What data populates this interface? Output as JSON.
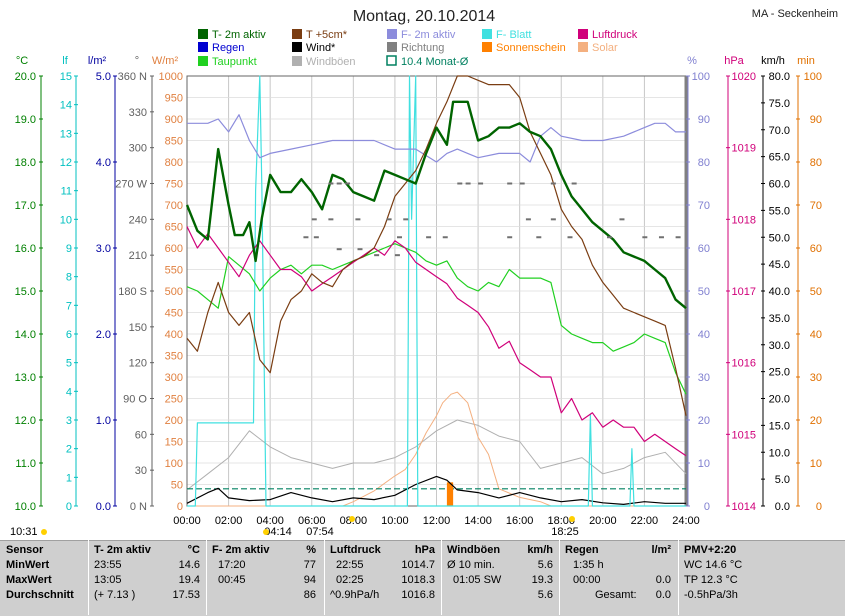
{
  "title": "Montag, 20.10.2014",
  "station": "MA - Seckenheim",
  "legend": [
    {
      "label": "T- 2m aktiv",
      "color": "#006400"
    },
    {
      "label": "T +5cm*",
      "color": "#7a3d12"
    },
    {
      "label": "F- 2m aktiv",
      "color": "#8c8cdc"
    },
    {
      "label": "F- Blatt",
      "color": "#40e0e0"
    },
    {
      "label": "Luftdruck",
      "color": "#d0007a"
    },
    {
      "label": "Regen",
      "color": "#0000d0"
    },
    {
      "label": "Wind*",
      "color": "#000000"
    },
    {
      "label": "Richtung",
      "color": "#808080"
    },
    {
      "label": "Sonnenschein",
      "color": "#ff8000"
    },
    {
      "label": "Solar",
      "color": "#f4b080"
    },
    {
      "label": "Taupunkt",
      "color": "#20d020"
    },
    {
      "label": "Windböen",
      "color": "#b0b0b0"
    },
    {
      "label": "10.4 Monat-Ø",
      "color": "#008060"
    }
  ],
  "axes": {
    "temp": {
      "unit": "°C",
      "ticks": [
        "20.0",
        "19.0",
        "18.0",
        "17.0",
        "16.0",
        "15.0",
        "14.0",
        "13.0",
        "12.0",
        "11.0",
        "10.0"
      ],
      "color": "#008000"
    },
    "leaf": {
      "unit": "lf",
      "ticks": [
        "15",
        "14",
        "13",
        "12",
        "11",
        "10",
        "9",
        "8",
        "7",
        "6",
        "5",
        "4",
        "3",
        "2",
        "1",
        "0"
      ],
      "color": "#00c0c0"
    },
    "rain": {
      "unit": "l/m²",
      "ticks": [
        "5.0",
        "4.0",
        "3.0",
        "2.0",
        "1.0",
        "0.0"
      ],
      "color": "#0000a0"
    },
    "dir": {
      "unit": "°",
      "ticks": [
        "360 N",
        "330",
        "300",
        "270 W",
        "240",
        "210",
        "180 S",
        "150",
        "120",
        "90 O",
        "60",
        "30",
        "0 N"
      ],
      "color": "#606060"
    },
    "solar": {
      "unit": "W/m²",
      "ticks": [
        "1000",
        "950",
        "900",
        "850",
        "800",
        "750",
        "700",
        "650",
        "600",
        "550",
        "500",
        "450",
        "400",
        "350",
        "300",
        "250",
        "200",
        "150",
        "100",
        "50",
        "0"
      ],
      "color": "#e08040"
    },
    "hum": {
      "unit": "%",
      "ticks": [
        "100",
        "90",
        "80",
        "70",
        "60",
        "50",
        "40",
        "30",
        "20",
        "10",
        "0"
      ],
      "color": "#8080d0"
    },
    "press": {
      "unit": "hPa",
      "ticks": [
        "1020",
        "1019",
        "1018",
        "1017",
        "1016",
        "1015",
        "1014"
      ],
      "color": "#d0007a"
    },
    "wind": {
      "unit": "km/h",
      "ticks": [
        "80.0",
        "75.0",
        "70.0",
        "65.0",
        "60.0",
        "55.0",
        "50.0",
        "45.0",
        "40.0",
        "35.0",
        "30.0",
        "25.0",
        "20.0",
        "15.0",
        "10.0",
        "5.0",
        "0.0"
      ],
      "color": "#000000"
    },
    "min": {
      "unit": "min",
      "ticks": [
        "100",
        "90",
        "80",
        "70",
        "60",
        "50",
        "40",
        "30",
        "20",
        "10",
        "0"
      ],
      "color": "#e07000"
    },
    "time": [
      "00:00",
      "02:00",
      "04:00",
      "06:00",
      "08:00",
      "10:00",
      "12:00",
      "14:00",
      "16:00",
      "18:00",
      "20:00",
      "22:00",
      "24:00"
    ]
  },
  "sun_times": {
    "sunrise": "04:14",
    "dawn": "07:54",
    "sunset": "18:25",
    "left": "10:31"
  },
  "chart_data": {
    "type": "line",
    "title": "Montag, 20.10.2014",
    "x_unit": "hours",
    "xlim": [
      0,
      24
    ],
    "series": [
      {
        "name": "T- 2m aktiv",
        "unit": "°C",
        "ylim": [
          10,
          20
        ],
        "x": [
          0,
          0.5,
          1,
          1.5,
          2,
          2.3,
          2.7,
          3,
          3.3,
          3.6,
          4,
          4.5,
          5,
          5.5,
          6,
          6.5,
          7,
          7.5,
          8,
          8.5,
          9,
          9.5,
          10,
          10.5,
          11,
          11.5,
          12,
          12.5,
          12.8,
          13,
          13.5,
          14,
          14.5,
          15,
          15.5,
          16,
          16.5,
          17,
          17.5,
          18,
          18.5,
          19,
          19.5,
          20,
          20.5,
          21,
          21.5,
          22,
          22.5,
          23,
          23.5,
          24
        ],
        "values": [
          17,
          16.4,
          16.2,
          18.3,
          17,
          16.3,
          16.3,
          16.6,
          15.7,
          16.7,
          17.7,
          17.3,
          17.3,
          17.6,
          17.3,
          16.9,
          17.7,
          17.6,
          17.3,
          17.2,
          17.1,
          17.8,
          17.7,
          17.6,
          17.5,
          18.2,
          18.8,
          18.4,
          19.4,
          19.4,
          19.4,
          18.5,
          18.6,
          18.8,
          18.8,
          18.9,
          18.7,
          18.6,
          18.3,
          17.7,
          17.2,
          16.9,
          16.6,
          16.4,
          16.2,
          15.9,
          15.8,
          15.7,
          15.5,
          15.3,
          14.8,
          14.6
        ]
      },
      {
        "name": "T +5cm*",
        "unit": "°C",
        "ylim": [
          10,
          20
        ],
        "x": [
          0,
          0.5,
          1,
          1.5,
          2,
          2.5,
          3,
          3.5,
          4,
          4.5,
          5,
          5.5,
          6,
          6.5,
          7,
          7.5,
          8,
          8.5,
          9,
          9.5,
          10,
          10.5,
          11,
          11.5,
          12,
          12.5,
          13,
          13.5,
          14,
          14.5,
          15,
          15.5,
          16,
          16.5,
          17,
          17.5,
          18,
          18.5,
          19,
          19.5,
          20,
          20.5,
          21,
          21.5,
          22,
          22.5,
          23,
          23.5,
          24
        ],
        "values": [
          13.9,
          13.6,
          14.5,
          15.2,
          14.5,
          14.2,
          14.5,
          13.4,
          13.1,
          14.3,
          14.8,
          15.0,
          15.4,
          15.2,
          15.1,
          15.5,
          15.7,
          15.8,
          16.0,
          16.5,
          17.2,
          17.5,
          17.8,
          18.3,
          18.9,
          19.4,
          20.0,
          20.0,
          19.9,
          19.8,
          19.8,
          19.8,
          19.5,
          18.7,
          18.2,
          17.7,
          16.9,
          16.5,
          16.2,
          15.6,
          15.2,
          14.9,
          14.6,
          14.5,
          14.4,
          14.3,
          14.2,
          13.2,
          12.1
        ]
      },
      {
        "name": "Taupunkt",
        "unit": "°C",
        "ylim": [
          10,
          20
        ],
        "x": [
          0,
          0.5,
          1,
          1.5,
          2,
          2.5,
          3,
          3.5,
          4,
          4.5,
          5,
          5.5,
          6,
          6.5,
          7,
          7.5,
          8,
          8.5,
          9,
          9.5,
          10,
          10.5,
          11,
          11.5,
          12,
          12.5,
          13,
          13.5,
          14,
          14.5,
          15,
          15.5,
          16,
          16.5,
          17,
          17.5,
          18,
          18.5,
          19,
          19.5,
          20,
          20.5,
          21,
          21.5,
          22,
          22.5,
          23,
          23.5,
          24
        ],
        "values": [
          15.1,
          15.0,
          14.8,
          14.6,
          15.8,
          15.6,
          15.4,
          15.0,
          15.3,
          15.5,
          15.6,
          15.4,
          15.6,
          15.6,
          15.5,
          15.6,
          15.7,
          15.8,
          15.9,
          16.0,
          16.1,
          16.0,
          15.9,
          15.7,
          15.6,
          15.7,
          15.3,
          15.1,
          15.0,
          15.2,
          15.1,
          15.5,
          15.3,
          15.3,
          15.3,
          15.2,
          14.2,
          14.0,
          13.9,
          13.8,
          13.8,
          13.6,
          13.7,
          13.8,
          14.0,
          13.9,
          13.8,
          13.1,
          12.6
        ]
      },
      {
        "name": "F- 2m aktiv",
        "unit": "%",
        "ylim": [
          0,
          100
        ],
        "x": [
          0,
          1,
          1.5,
          2,
          2.5,
          3,
          3.5,
          4,
          5,
          6,
          7,
          8,
          9,
          10,
          11,
          12,
          12.5,
          13,
          13.5,
          14,
          15,
          16,
          16.5,
          17,
          17.5,
          18,
          19,
          20,
          21,
          22,
          22.5,
          23,
          23.5,
          24
        ],
        "values": [
          89,
          89,
          90,
          87,
          91,
          85,
          81,
          82,
          83,
          84,
          85,
          85,
          85,
          83,
          83,
          80,
          82,
          83,
          82,
          81,
          82,
          82,
          80,
          86,
          88,
          86,
          85,
          85,
          86,
          88,
          89,
          89,
          87,
          87
        ]
      },
      {
        "name": "Luftdruck",
        "unit": "hPa",
        "ylim": [
          1014,
          1020
        ],
        "x": [
          0,
          0.5,
          1,
          1.5,
          2,
          2.5,
          3,
          3.5,
          4,
          4.5,
          5,
          5.5,
          6,
          6.5,
          7,
          7.5,
          8,
          8.5,
          9,
          9.5,
          10,
          10.5,
          11,
          11.5,
          12,
          12.5,
          13,
          13.5,
          14,
          14.5,
          15,
          15.5,
          16,
          16.5,
          17,
          17.5,
          18,
          18.5,
          19,
          19.5,
          20,
          20.5,
          21,
          21.5,
          22,
          22.5,
          23,
          23.5,
          24
        ],
        "values": [
          1017.9,
          1017.6,
          1017.8,
          1017.6,
          1017.4,
          1017.2,
          1017.5,
          1017.7,
          1017.5,
          1017.3,
          1017.3,
          1017.2,
          1017.0,
          1017.1,
          1017.2,
          1017.3,
          1017.4,
          1017.5,
          1017.6,
          1017.5,
          1017.7,
          1017.6,
          1017.4,
          1017.3,
          1017.2,
          1017.1,
          1016.9,
          1016.8,
          1016.7,
          1016.5,
          1016.2,
          1016.3,
          1016.0,
          1015.9,
          1015.8,
          1015.8,
          1015.3,
          1015.5,
          1015.2,
          1015.3,
          1015.1,
          1015.2,
          1015.1,
          1015.1,
          1014.9,
          1015.0,
          1014.9,
          1014.8,
          1014.7
        ]
      },
      {
        "name": "F- Blatt",
        "unit": "lf",
        "ylim": [
          0,
          15
        ],
        "x": [
          0,
          0.4,
          0.5,
          3.2,
          3.3,
          3.5,
          3.6,
          3.8,
          10.6,
          10.7,
          10.8,
          11,
          11.1,
          19.3,
          19.4,
          19.5,
          21.3,
          21.4,
          21.5,
          24
        ],
        "values": [
          0,
          0,
          2.9,
          2.9,
          11,
          15,
          11,
          0,
          0,
          15,
          10,
          15,
          0,
          0,
          3.2,
          0,
          0,
          2,
          0,
          0
        ]
      },
      {
        "name": "Wind*",
        "unit": "km/h",
        "ylim": [
          0,
          80
        ],
        "x": [
          0,
          1,
          1.5,
          2,
          3,
          4,
          5,
          6,
          7,
          8,
          9,
          10,
          11,
          12,
          12.5,
          13,
          14,
          15,
          16,
          17,
          18,
          19,
          20,
          21,
          22,
          23,
          24
        ],
        "values": [
          0.5,
          2.5,
          3.3,
          1.5,
          1.0,
          1.2,
          2.5,
          1.5,
          0.8,
          1.5,
          1.2,
          2.0,
          4.0,
          5.5,
          4.8,
          3.0,
          2.5,
          1.5,
          2.5,
          1.5,
          0.8,
          1.2,
          0.6,
          0.3,
          0.8,
          0.5,
          0.5
        ]
      },
      {
        "name": "Windböen",
        "unit": "km/h",
        "ylim": [
          0,
          80
        ],
        "x": [
          0,
          1,
          2,
          3,
          4,
          5,
          6,
          7,
          8,
          9,
          10,
          11,
          12,
          13,
          14,
          15,
          16,
          17,
          18,
          19,
          20,
          21,
          22,
          23,
          24
        ],
        "values": [
          3,
          6,
          9,
          14,
          11,
          9,
          8,
          7,
          8,
          8,
          9,
          11,
          14,
          16,
          15,
          13,
          12,
          7,
          8,
          9,
          6,
          7,
          9,
          10,
          6
        ]
      },
      {
        "name": "Solar",
        "unit": "W/m²",
        "ylim": [
          0,
          1000
        ],
        "x": [
          0,
          7.5,
          8,
          9,
          10,
          10.5,
          11,
          11.5,
          12,
          12.3,
          12.7,
          13,
          13.5,
          14,
          14.5,
          15,
          16,
          17,
          17.5,
          18,
          24
        ],
        "values": [
          0,
          0,
          10,
          35,
          70,
          85,
          120,
          170,
          210,
          240,
          260,
          265,
          240,
          160,
          120,
          40,
          20,
          10,
          0,
          0,
          0
        ]
      },
      {
        "name": "Sonnenschein",
        "unit": "min",
        "ylim": [
          0,
          100
        ],
        "x": [
          12.5,
          12.8
        ],
        "values": [
          5.5,
          5.5
        ]
      },
      {
        "name": "10.4 Monat-Ø",
        "unit": "°C",
        "ylim": [
          10,
          20
        ],
        "x": [
          0,
          24
        ],
        "values": [
          10.4,
          10.4
        ]
      }
    ]
  },
  "summary": {
    "sensor": {
      "header": "Sensor",
      "rows": [
        "MinWert",
        "MaxWert",
        "Durchschnitt"
      ]
    },
    "temp": {
      "header": "T- 2m aktiv",
      "unit": "°C",
      "rows": [
        [
          "23:55",
          "14.6"
        ],
        [
          "13:05",
          "19.4"
        ],
        [
          "(+ 7.13 )",
          "17.53"
        ]
      ]
    },
    "hum": {
      "header": "F- 2m aktiv",
      "unit": "%",
      "rows": [
        [
          "17:20",
          "77"
        ],
        [
          "00:45",
          "94"
        ],
        [
          "",
          "86"
        ]
      ]
    },
    "press": {
      "header": "Luftdruck",
      "unit": "hPa",
      "rows": [
        [
          "22:55",
          "1014.7"
        ],
        [
          "02:25",
          "1018.3"
        ],
        [
          "^0.9hPa/h",
          "1016.8"
        ]
      ]
    },
    "gust": {
      "header": "Windböen",
      "unit": "km/h",
      "rows": [
        [
          "Ø 10 min.",
          "5.6"
        ],
        [
          "01:05  SW",
          "19.3"
        ],
        [
          "",
          "5.6"
        ]
      ]
    },
    "rain": {
      "header": "Regen",
      "unit": "l/m²",
      "rows": [
        [
          "1:35 h",
          ""
        ],
        [
          "00:00",
          "0.0"
        ],
        [
          "Gesamt:",
          "0.0"
        ]
      ]
    },
    "pmv": {
      "header": "PMV+2:20",
      "rows": [
        "WC 14.6 °C",
        "TP 12.3 °C",
        "-0.5hPa/3h"
      ]
    }
  }
}
